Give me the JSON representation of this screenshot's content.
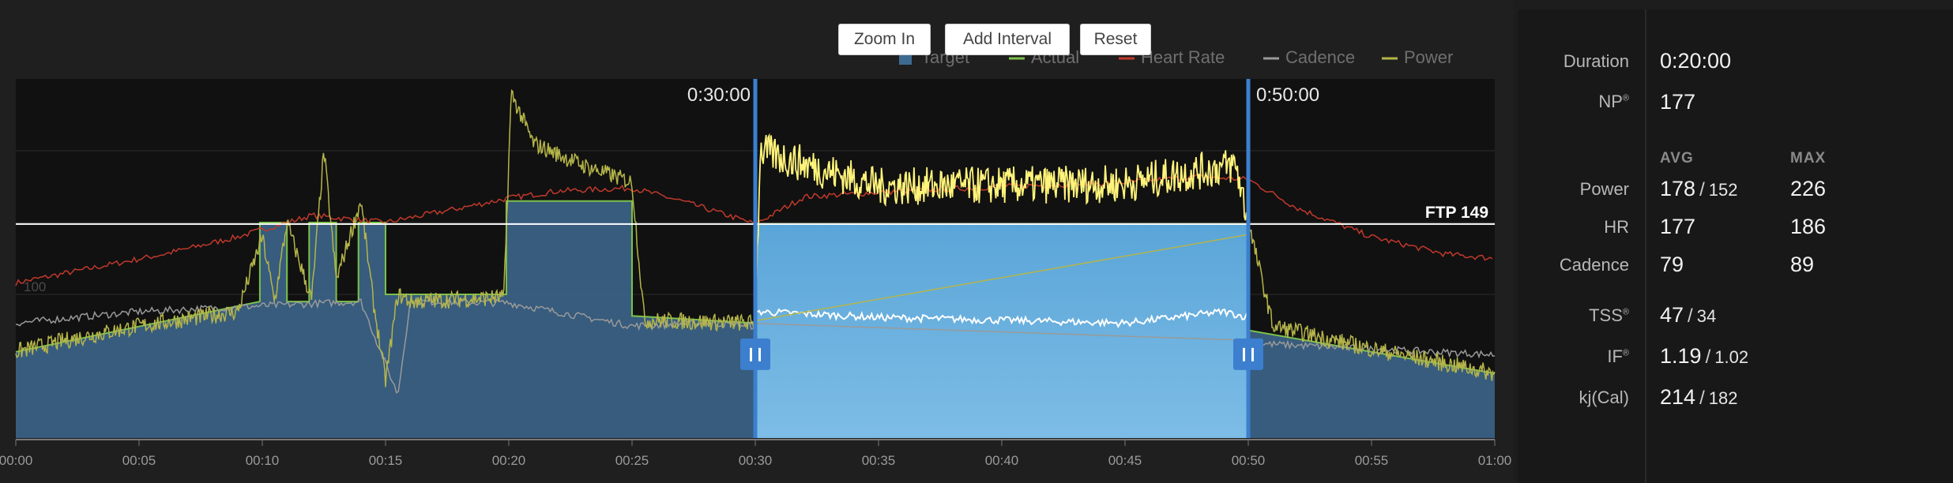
{
  "toolbar": {
    "zoom_in": "Zoom In",
    "add_interval": "Add Interval",
    "reset": "Reset"
  },
  "stats": {
    "duration_label": "Duration",
    "duration_value": "0:20:00",
    "np_label": "NP",
    "np_value": "177",
    "avg_header": "AVG",
    "max_header": "MAX",
    "power_label": "Power",
    "power_avg": "178",
    "power_avg2": "152",
    "power_max": "226",
    "hr_label": "HR",
    "hr_avg": "177",
    "hr_max": "186",
    "cadence_label": "Cadence",
    "cadence_avg": "79",
    "cadence_max": "89",
    "tss_label": "TSS",
    "tss_value": "47",
    "tss_value2": "34",
    "if_label": "IF",
    "if_value": "1.19",
    "if_value2": "1.02",
    "kj_label": "kj(Cal)",
    "kj_value": "214",
    "kj_value2": "182",
    "separator": "/",
    "registered_mark": "®"
  },
  "chart_data": {
    "type": "line",
    "legend": [
      {
        "name": "Target",
        "color": "#3e6a91"
      },
      {
        "name": "Actual",
        "color": "#7cc04a"
      },
      {
        "name": "Heart Rate",
        "color": "#c0392b"
      },
      {
        "name": "Cadence",
        "color": "#9a9a9a"
      },
      {
        "name": "Power",
        "color": "#b5b54a"
      }
    ],
    "legend_position": "top-right",
    "x_ticks": [
      "00:00",
      "00:05",
      "00:10",
      "00:15",
      "00:20",
      "00:25",
      "00:30",
      "00:35",
      "00:40",
      "00:45",
      "00:50",
      "00:55",
      "01:00"
    ],
    "x_range_min": [
      0,
      60
    ],
    "y_range": [
      0,
      250
    ],
    "y_tick_label": "100",
    "ftp": {
      "value": 149,
      "label": "FTP 149"
    },
    "selection": {
      "start_label": "0:30:00",
      "end_label": "0:50:00",
      "start_min": 30,
      "end_min": 50
    },
    "series": [
      {
        "name": "Target",
        "x": [
          0,
          9.9,
          9.9,
          11,
          11,
          11.9,
          11.9,
          13,
          13,
          13.9,
          13.9,
          15,
          15,
          19.9,
          19.9,
          25,
          25,
          30,
          30,
          50,
          50,
          60
        ],
        "values": [
          60,
          95,
          150,
          150,
          95,
          95,
          150,
          150,
          95,
          95,
          150,
          150,
          100,
          100,
          165,
          165,
          85,
          80,
          149,
          149,
          75,
          45
        ]
      },
      {
        "name": "Heart Rate",
        "x": [
          0,
          3,
          6,
          9,
          12,
          15,
          18,
          20,
          22,
          25,
          27,
          30,
          32,
          36,
          40,
          45,
          48,
          50,
          52,
          55,
          58,
          60
        ],
        "values": [
          108,
          118,
          128,
          140,
          155,
          150,
          160,
          167,
          172,
          174,
          165,
          149,
          168,
          172,
          175,
          178,
          182,
          180,
          160,
          140,
          128,
          125
        ]
      },
      {
        "name": "Cadence",
        "x": [
          0,
          5,
          10,
          14,
          15.5,
          16,
          20,
          25,
          28,
          30,
          30.1,
          35,
          40,
          45,
          49,
          50,
          50.1,
          55,
          60
        ],
        "values": [
          80,
          88,
          92,
          95,
          30,
          95,
          94,
          78,
          80,
          78,
          88,
          84,
          82,
          80,
          88,
          84,
          66,
          62,
          58
        ]
      },
      {
        "name": "Power",
        "x": [
          0,
          2,
          5,
          9,
          10,
          10.5,
          11,
          12,
          12.5,
          13,
          14,
          14.5,
          15,
          15.5,
          16,
          19.8,
          20.1,
          21,
          23,
          25,
          25.5,
          30,
          30.2,
          35,
          40,
          45,
          49.5,
          50,
          51,
          55,
          60
        ],
        "values": [
          60,
          68,
          78,
          88,
          140,
          95,
          150,
          96,
          200,
          110,
          165,
          95,
          40,
          100,
          95,
          98,
          240,
          205,
          190,
          178,
          82,
          80,
          200,
          175,
          176,
          177,
          190,
          150,
          78,
          62,
          45
        ]
      }
    ]
  }
}
